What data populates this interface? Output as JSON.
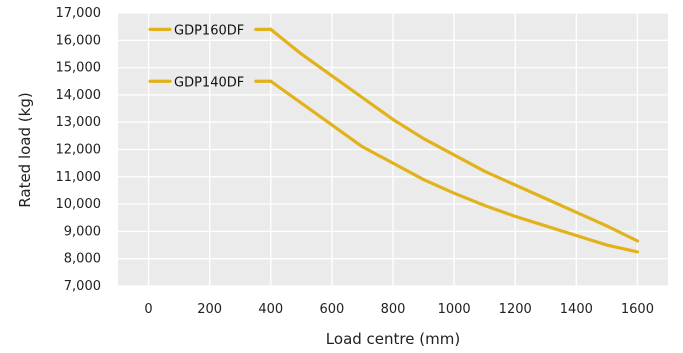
{
  "chart_data": {
    "type": "line",
    "title": "",
    "xlabel": "Load centre (mm)",
    "ylabel": "Rated load (kg)",
    "xlim": [
      -100,
      1700
    ],
    "ylim": [
      7000,
      17000
    ],
    "x_ticks": [
      "0",
      "200",
      "400",
      "600",
      "800",
      "1000",
      "1200",
      "1400",
      "1600"
    ],
    "y_ticks": [
      "7,000",
      "8,000",
      "9,000",
      "10,000",
      "11,000",
      "12,000",
      "13,000",
      "14,000",
      "15,000",
      "16,000",
      "17,000"
    ],
    "grid": true,
    "background": "#ebebeb",
    "line_color": "#e2b21c",
    "series": [
      {
        "name": "GDP160DF",
        "x": [
          400,
          500,
          600,
          700,
          800,
          900,
          1000,
          1100,
          1200,
          1300,
          1400,
          1500,
          1600
        ],
        "y": [
          16400,
          15500,
          14700,
          13900,
          13100,
          12400,
          11800,
          11200,
          10700,
          10200,
          9700,
          9200,
          8650
        ]
      },
      {
        "name": "GDP140DF",
        "x": [
          400,
          500,
          600,
          700,
          800,
          900,
          1000,
          1100,
          1200,
          1300,
          1400,
          1500,
          1600
        ],
        "y": [
          14500,
          13700,
          12900,
          12100,
          11500,
          10900,
          10400,
          9950,
          9550,
          9200,
          8850,
          8500,
          8250
        ]
      }
    ]
  }
}
